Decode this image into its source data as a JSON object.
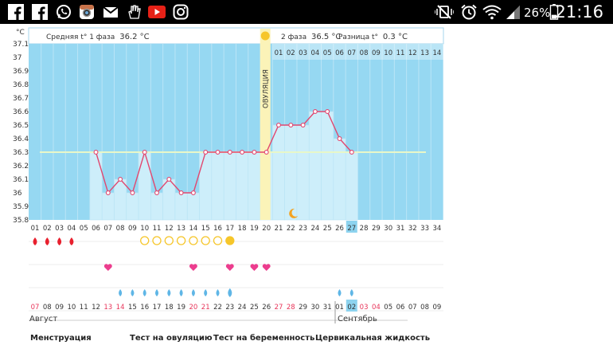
{
  "status_bar": {
    "icons": [
      "facebook-icon",
      "facebook-icon",
      "whatsapp-icon",
      "instagram-color-icon",
      "gmail-icon",
      "hand-icon",
      "youtube-icon",
      "instagram-icon"
    ],
    "right_icons": [
      "vibrate-mute-icon",
      "alarm-icon",
      "wifi-icon",
      "signal-icon",
      "battery-icon"
    ],
    "battery": "26%",
    "time": "21:16"
  },
  "chart_header": {
    "unit": "°C",
    "phase1": "Средняя t° 1 фаза",
    "phase1_value": "36.2 °C",
    "phase2": "2 фаза",
    "phase2_value": "36.5 °C",
    "diff": "Разница t°",
    "diff_value": "0.3 °C",
    "ovulation": "ОВУЛЯЦИЯ"
  },
  "chart_data": {
    "type": "area",
    "title": "",
    "ylabel": "°C",
    "ylim": [
      35.8,
      37.1
    ],
    "yticks": [
      "37.1",
      "37",
      "36.9",
      "36.8",
      "36.7",
      "36.6",
      "36.5",
      "36.4",
      "36.3",
      "36.2",
      "36.1",
      "36",
      "35.9",
      "35.8"
    ],
    "cycle_days": [
      "01",
      "02",
      "03",
      "04",
      "05",
      "06",
      "07",
      "08",
      "09",
      "10",
      "11",
      "12",
      "13",
      "14",
      "15",
      "16",
      "17",
      "18",
      "19",
      "20",
      "21",
      "22",
      "23",
      "24",
      "25",
      "26",
      "27",
      "28",
      "29",
      "30",
      "31",
      "32",
      "33",
      "34"
    ],
    "phase2_days": [
      "01",
      "02",
      "03",
      "04",
      "05",
      "06",
      "07",
      "08",
      "09",
      "10",
      "11",
      "12",
      "13",
      "14"
    ],
    "current_cycle_day": "27",
    "ovulation_day": 20,
    "coverline": 36.3,
    "series": [
      {
        "values": [
          null,
          null,
          null,
          null,
          null,
          36.3,
          36.0,
          36.1,
          36.0,
          36.3,
          36.0,
          36.1,
          36.0,
          36.0,
          36.3,
          36.3,
          36.3,
          36.3,
          36.3,
          36.3,
          36.5,
          36.5,
          36.5,
          36.6,
          36.6,
          36.4,
          36.3,
          null,
          null,
          null,
          null,
          null,
          null,
          null
        ]
      }
    ],
    "moon_day": 22
  },
  "markers": {
    "menstruation_days": [
      1,
      2,
      3,
      4
    ],
    "ovulation_test_days": [
      10,
      11,
      12,
      13,
      14,
      15,
      16,
      17
    ],
    "ovulation_test_positive_day": 17,
    "pregnancy_test_days": [
      7,
      14,
      17,
      19,
      20
    ],
    "mucus_days": [
      8,
      9,
      10,
      11,
      12,
      13,
      14,
      15,
      16,
      17,
      26,
      27
    ],
    "mucus_strong_day": 17
  },
  "calendar": {
    "dates": [
      "07",
      "08",
      "09",
      "10",
      "11",
      "12",
      "13",
      "14",
      "15",
      "16",
      "17",
      "18",
      "19",
      "20",
      "21",
      "22",
      "23",
      "24",
      "25",
      "26",
      "27",
      "28",
      "29",
      "30",
      "31",
      "01",
      "02",
      "03",
      "04",
      "05",
      "06",
      "07",
      "08",
      "09"
    ],
    "weekend_indices": [
      0,
      6,
      7,
      13,
      14,
      20,
      21,
      27,
      28
    ],
    "current_index": 26,
    "month1": "Август",
    "month2": "Сентябрь"
  },
  "legend": {
    "menstruation": "Менструация",
    "ovulation_test": "Тест на овуляцию",
    "pregnancy_test": "Тест на беременность",
    "cervical_fluid": "Цервикальная жидкость"
  },
  "colors": {
    "sky": "#96d8f2",
    "area": "#cdeefa",
    "line": "#e2476f",
    "ovulation_band": "#fbf3b8",
    "weekend": "#e8355a",
    "current_day": "#8dd3ef",
    "sun": "#f6c62a",
    "drop": "#5fb6e6"
  }
}
